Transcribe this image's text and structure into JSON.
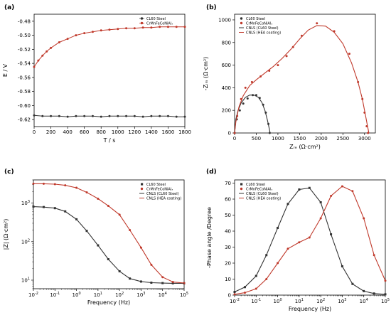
{
  "colors": {
    "steel": "#333333",
    "hea": "#c0392b"
  },
  "chart_data": [
    {
      "id": "a",
      "panel_label": "(a)",
      "type": "line",
      "xlabel": "T / s",
      "ylabel": "E / V",
      "xlim": [
        0,
        1800
      ],
      "ylim": [
        -0.63,
        -0.47
      ],
      "xticks": [
        0,
        200,
        400,
        600,
        800,
        1000,
        1200,
        1400,
        1600,
        1800
      ],
      "yticks": [
        -0.62,
        -0.6,
        -0.58,
        -0.56,
        -0.54,
        -0.52,
        -0.5,
        -0.48
      ],
      "ytick_labels": [
        "-0.62",
        "-0.60",
        "-0.58",
        "-0.56",
        "-0.54",
        "-0.52",
        "-0.50",
        "-0.48"
      ],
      "legend_position": "top-right",
      "series": [
        {
          "name": "CL60 Steel",
          "color": "#333333",
          "marker": "circle",
          "x": [
            0,
            100,
            200,
            300,
            400,
            500,
            600,
            700,
            800,
            900,
            1000,
            1100,
            1200,
            1300,
            1400,
            1500,
            1600,
            1700,
            1800
          ],
          "y": [
            -0.614,
            -0.615,
            -0.615,
            -0.615,
            -0.616,
            -0.615,
            -0.615,
            -0.615,
            -0.616,
            -0.615,
            -0.615,
            -0.615,
            -0.615,
            -0.616,
            -0.615,
            -0.615,
            -0.615,
            -0.616,
            -0.616
          ]
        },
        {
          "name": "CrMnFeCoNiAlₓ",
          "color": "#c0392b",
          "marker": "circle",
          "x": [
            0,
            50,
            100,
            150,
            200,
            300,
            400,
            500,
            600,
            700,
            800,
            900,
            1000,
            1100,
            1200,
            1300,
            1400,
            1500,
            1600,
            1700,
            1800
          ],
          "y": [
            -0.545,
            -0.536,
            -0.529,
            -0.523,
            -0.518,
            -0.51,
            -0.505,
            -0.5,
            -0.497,
            -0.495,
            -0.493,
            -0.492,
            -0.491,
            -0.49,
            -0.49,
            -0.489,
            -0.489,
            -0.488,
            -0.488,
            -0.488,
            -0.488
          ]
        }
      ]
    },
    {
      "id": "b",
      "panel_label": "(b)",
      "type": "scatter",
      "xlabel": "Zᵣₑ (Ω·cm²)",
      "ylabel": "-Zᵢₘ (Ω·cm²)",
      "xlim": [
        0,
        3250
      ],
      "ylim": [
        0,
        1050
      ],
      "xticks": [
        0,
        500,
        1000,
        1500,
        2000,
        2500,
        3000
      ],
      "yticks": [
        0,
        200,
        400,
        600,
        800,
        1000
      ],
      "legend_position": "top-left",
      "series": [
        {
          "name": "CL60 Steel",
          "color": "#333333",
          "marker": "circle",
          "x": [
            0,
            50,
            120,
            200,
            300,
            420,
            500,
            580,
            660,
            720,
            780,
            810
          ],
          "y": [
            0,
            120,
            200,
            260,
            305,
            335,
            335,
            310,
            250,
            180,
            80,
            0
          ]
        },
        {
          "name": "CrMnFeCoNiAlₓ",
          "color": "#c0392b",
          "marker": "circle",
          "x": [
            0,
            60,
            150,
            250,
            400,
            600,
            800,
            1000,
            1200,
            1350,
            1550,
            1900,
            2300,
            2650,
            2850,
            2950,
            3000,
            3050,
            3080
          ],
          "y": [
            0,
            150,
            300,
            400,
            450,
            500,
            550,
            600,
            680,
            760,
            860,
            970,
            900,
            700,
            450,
            300,
            180,
            60,
            0
          ]
        },
        {
          "name": "CNLS (CL60 Steel)",
          "color": "#333333",
          "style": "fit-line",
          "x": [
            0,
            30,
            80,
            150,
            250,
            350,
            450,
            550,
            630,
            700,
            760,
            800,
            820
          ],
          "y": [
            0,
            120,
            200,
            265,
            315,
            335,
            335,
            315,
            270,
            200,
            110,
            40,
            0
          ]
        },
        {
          "name": "CNLS (HEA coating)",
          "color": "#c0392b",
          "style": "fit-line",
          "x": [
            0,
            30,
            100,
            200,
            350,
            500,
            700,
            900,
            1100,
            1300,
            1500,
            1700,
            1900,
            2100,
            2300,
            2500,
            2700,
            2850,
            2950,
            3020,
            3070,
            3100
          ],
          "y": [
            0,
            100,
            230,
            330,
            420,
            470,
            530,
            590,
            660,
            740,
            830,
            910,
            950,
            945,
            890,
            790,
            620,
            450,
            300,
            160,
            60,
            0
          ]
        }
      ]
    },
    {
      "id": "c",
      "panel_label": "(c)",
      "type": "line",
      "xlabel": "Frequency (Hz)",
      "ylabel": "|Z| (Ω·cm²)",
      "xscale": "log",
      "yscale": "log",
      "xlim": [
        0.01,
        100000
      ],
      "ylim": [
        6,
        4000
      ],
      "xticks": [
        0.01,
        0.1,
        1,
        10,
        100,
        1000,
        10000,
        100000
      ],
      "xtick_exponents": [
        "-2",
        "-1",
        "0",
        "1",
        "2",
        "3",
        "4",
        "5"
      ],
      "yticks": [
        10,
        100,
        1000
      ],
      "ytick_exponents": [
        "1",
        "2",
        "3"
      ],
      "legend_position": "top-right",
      "series": [
        {
          "name": "CL60 Steel",
          "color": "#333333",
          "marker": "square",
          "x": [
            0.01,
            0.03,
            0.1,
            0.3,
            1,
            3,
            10,
            30,
            100,
            300,
            1000,
            3000,
            10000,
            30000,
            100000
          ],
          "y": [
            810,
            790,
            740,
            610,
            380,
            190,
            80,
            35,
            17,
            11,
            9.2,
            8.6,
            8.4,
            8.3,
            8.3
          ]
        },
        {
          "name": "CrMnFeCoNiAlₓ",
          "color": "#c0392b",
          "marker": "circle",
          "x": [
            0.01,
            0.03,
            0.1,
            0.3,
            1,
            3,
            10,
            30,
            100,
            300,
            1000,
            3000,
            10000,
            30000,
            100000
          ],
          "y": [
            3200,
            3180,
            3100,
            2900,
            2500,
            1900,
            1300,
            850,
            500,
            200,
            70,
            25,
            12,
            9,
            8.4
          ]
        },
        {
          "name": "CNLS (CL60 Steel)",
          "color": "#333333",
          "style": "fit-line",
          "x": [
            0.01,
            0.03,
            0.1,
            0.3,
            1,
            3,
            10,
            30,
            100,
            300,
            1000,
            3000,
            10000,
            30000,
            100000
          ],
          "y": [
            810,
            790,
            740,
            610,
            380,
            190,
            80,
            35,
            17,
            11,
            9.2,
            8.6,
            8.4,
            8.3,
            8.3
          ]
        },
        {
          "name": "CNLS (HEA coating)",
          "color": "#c0392b",
          "style": "fit-line",
          "x": [
            0.01,
            0.03,
            0.1,
            0.3,
            1,
            3,
            10,
            30,
            100,
            300,
            1000,
            3000,
            10000,
            30000,
            100000
          ],
          "y": [
            3200,
            3180,
            3100,
            2900,
            2500,
            1900,
            1300,
            850,
            500,
            200,
            70,
            25,
            12,
            9,
            8.4
          ]
        }
      ]
    },
    {
      "id": "d",
      "panel_label": "(d)",
      "type": "line",
      "xlabel": "Frequency (Hz)",
      "ylabel": "-Phase angle /Degree",
      "xscale": "log",
      "xlim": [
        0.01,
        100000
      ],
      "ylim": [
        0,
        72
      ],
      "xticks": [
        0.01,
        0.1,
        1,
        10,
        100,
        1000,
        10000,
        100000
      ],
      "xtick_exponents": [
        "-2",
        "-1",
        "0",
        "1",
        "2",
        "3",
        "4",
        "5"
      ],
      "yticks": [
        0,
        10,
        20,
        30,
        40,
        50,
        60,
        70
      ],
      "legend_position": "top-left",
      "series": [
        {
          "name": "CL60 Steel",
          "color": "#333333",
          "marker": "square",
          "x": [
            0.01,
            0.03,
            0.1,
            0.3,
            1,
            3,
            10,
            30,
            100,
            300,
            1000,
            3000,
            10000,
            30000,
            100000
          ],
          "y": [
            2,
            5,
            12,
            25,
            42,
            57,
            66,
            67,
            58,
            38,
            18,
            7,
            2.5,
            1,
            0.5
          ]
        },
        {
          "name": "CrMnFeCoNiAlₓ",
          "color": "#c0392b",
          "marker": "circle",
          "x": [
            0.01,
            0.03,
            0.1,
            0.3,
            1,
            3,
            10,
            30,
            100,
            300,
            1000,
            3000,
            10000,
            30000,
            100000
          ],
          "y": [
            0.5,
            1.5,
            4,
            10,
            20,
            29,
            33,
            36,
            48,
            62,
            68,
            65,
            48,
            25,
            9
          ]
        },
        {
          "name": "CNLS (CL60 Steel)",
          "color": "#333333",
          "style": "fit-line",
          "x": [
            0.01,
            0.03,
            0.1,
            0.3,
            1,
            3,
            10,
            30,
            100,
            300,
            1000,
            3000,
            10000,
            30000,
            100000
          ],
          "y": [
            2,
            5,
            12,
            25,
            42,
            57,
            66,
            67,
            58,
            38,
            18,
            7,
            2.5,
            1,
            0.5
          ]
        },
        {
          "name": "CNLS (HEA coating)",
          "color": "#c0392b",
          "style": "fit-line",
          "x": [
            0.01,
            0.03,
            0.1,
            0.3,
            1,
            3,
            10,
            30,
            100,
            300,
            1000,
            3000,
            10000,
            30000,
            100000
          ],
          "y": [
            0.5,
            1.5,
            4,
            10,
            20,
            29,
            33,
            36,
            48,
            62,
            68,
            65,
            48,
            25,
            9
          ]
        }
      ]
    }
  ]
}
